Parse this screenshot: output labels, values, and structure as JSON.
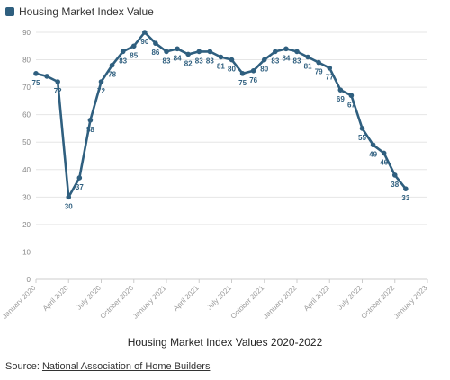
{
  "chart_data": {
    "type": "line",
    "title": "Housing Market Index Values 2020-2022",
    "ylim": [
      0,
      90
    ],
    "y_ticks": [
      "0",
      "10",
      "20",
      "30",
      "40",
      "50",
      "60",
      "70",
      "80",
      "90"
    ],
    "x_tick_labels": [
      "January 2020",
      "April 2020",
      "July 2020",
      "October 2020",
      "January 2021",
      "April 2021",
      "July 2021",
      "October 2021",
      "January 2022",
      "April 2022",
      "July 2022",
      "October 2022",
      "January 2023"
    ],
    "grid": "horizontal",
    "legend_position": "top-left",
    "series": [
      {
        "name": "Housing Market Index Value",
        "color": "#2f5f7f",
        "values": [
          75,
          74,
          72,
          30,
          37,
          58,
          72,
          78,
          83,
          85,
          90,
          86,
          83,
          84,
          82,
          83,
          83,
          81,
          80,
          75,
          76,
          80,
          83,
          84,
          83,
          81,
          79,
          77,
          69,
          67,
          55,
          49,
          46,
          38,
          33
        ],
        "labels": [
          "75",
          "",
          "72",
          "30",
          "37",
          "58",
          "72",
          "78",
          "83",
          "85",
          "90",
          "86",
          "83",
          "84",
          "82",
          "83",
          "83",
          "81",
          "80",
          "75",
          "76",
          "80",
          "83",
          "84",
          "83",
          "81",
          "79",
          "77",
          "69",
          "67",
          "55",
          "49",
          "46",
          "38",
          "33"
        ]
      }
    ]
  },
  "legend": {
    "label": "Housing Market Index Value"
  },
  "caption": "Housing Market Index Values 2020-2022",
  "source": {
    "prefix": "Source: ",
    "link_text": "National Association of Home Builders"
  }
}
